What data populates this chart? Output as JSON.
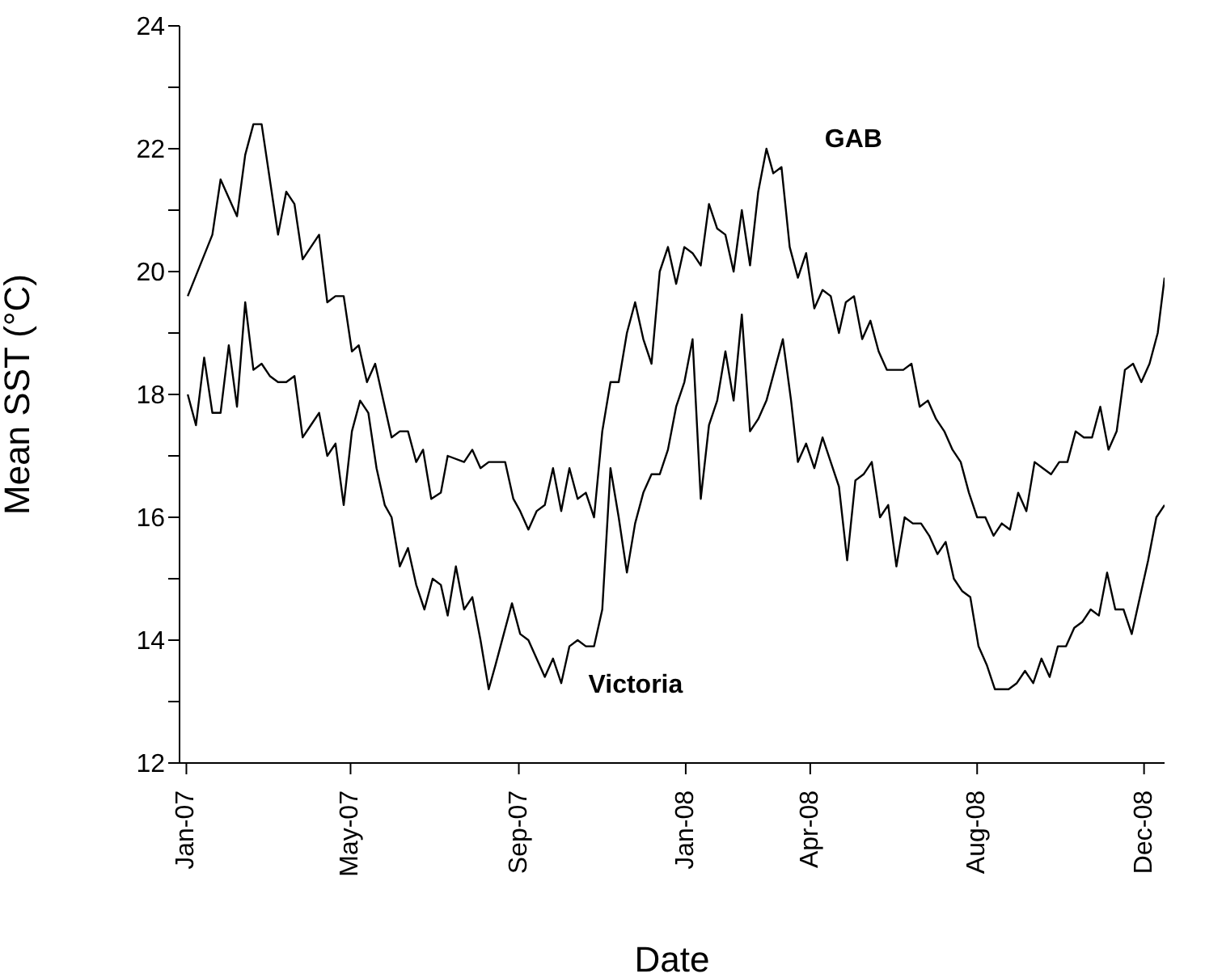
{
  "chart_data": {
    "type": "line",
    "xlabel": "Date",
    "ylabel": "Mean SST (°C)",
    "xlim": [
      "2006-12-27",
      "2008-12-16"
    ],
    "xticks": [
      {
        "value": "2007-01-01",
        "label": "Jan-07"
      },
      {
        "value": "2007-05-01",
        "label": "May-07"
      },
      {
        "value": "2007-09-01",
        "label": "Sep-07"
      },
      {
        "value": "2008-01-01",
        "label": "Jan-08"
      },
      {
        "value": "2008-04-01",
        "label": "Apr-08"
      },
      {
        "value": "2008-08-01",
        "label": "Aug-08"
      },
      {
        "value": "2008-12-01",
        "label": "Dec-08"
      }
    ],
    "ylim": [
      12,
      24
    ],
    "yticks": [
      12,
      {
        "value": 13,
        "label": null
      },
      14,
      {
        "value": 15,
        "label": null
      },
      16,
      {
        "value": 17,
        "label": null
      },
      18,
      {
        "value": 19,
        "label": null
      },
      20,
      {
        "value": 21,
        "label": null
      },
      22,
      {
        "value": 23,
        "label": null
      },
      24
    ],
    "grid": false,
    "legend": false,
    "marker": "none",
    "line_style": "solid",
    "series": [
      {
        "name": "GAB",
        "color": "#000000",
        "x": [
          "2007-01-02",
          "2007-01-20",
          "2007-01-26",
          "2007-02-07",
          "2007-02-13",
          "2007-02-19",
          "2007-02-25",
          "2007-03-09",
          "2007-03-15",
          "2007-03-21",
          "2007-03-27",
          "2007-04-08",
          "2007-04-14",
          "2007-04-20",
          "2007-04-26",
          "2007-05-02",
          "2007-05-07",
          "2007-05-13",
          "2007-05-19",
          "2007-05-31",
          "2007-06-06",
          "2007-06-12",
          "2007-06-18",
          "2007-06-23",
          "2007-06-29",
          "2007-07-06",
          "2007-07-11",
          "2007-07-23",
          "2007-07-29",
          "2007-08-04",
          "2007-08-10",
          "2007-08-16",
          "2007-08-22",
          "2007-08-28",
          "2007-09-02",
          "2007-09-08",
          "2007-09-14",
          "2007-09-20",
          "2007-09-26",
          "2007-10-02",
          "2007-10-08",
          "2007-10-14",
          "2007-10-20",
          "2007-10-26",
          "2007-11-01",
          "2007-11-07",
          "2007-11-13",
          "2007-11-19",
          "2007-11-25",
          "2007-12-01",
          "2007-12-07",
          "2007-12-13",
          "2007-12-19",
          "2007-12-25",
          "2007-12-31",
          "2008-01-06",
          "2008-01-12",
          "2008-01-18",
          "2008-01-24",
          "2008-01-30",
          "2008-02-05",
          "2008-02-11",
          "2008-02-17",
          "2008-02-23",
          "2008-02-29",
          "2008-03-05",
          "2008-03-11",
          "2008-03-17",
          "2008-03-23",
          "2008-03-29",
          "2008-04-04",
          "2008-04-10",
          "2008-04-16",
          "2008-04-22",
          "2008-04-27",
          "2008-05-03",
          "2008-05-09",
          "2008-05-15",
          "2008-05-21",
          "2008-05-27",
          "2008-06-08",
          "2008-06-14",
          "2008-06-20",
          "2008-06-26",
          "2008-07-02",
          "2008-07-08",
          "2008-07-14",
          "2008-07-20",
          "2008-07-26",
          "2008-08-01",
          "2008-08-07",
          "2008-08-13",
          "2008-08-19",
          "2008-08-25",
          "2008-08-31",
          "2008-09-06",
          "2008-09-12",
          "2008-09-18",
          "2008-09-24",
          "2008-09-30",
          "2008-10-06",
          "2008-10-12",
          "2008-10-18",
          "2008-10-24",
          "2008-10-30",
          "2008-11-05",
          "2008-11-11",
          "2008-11-17",
          "2008-11-23",
          "2008-11-29",
          "2008-12-05",
          "2008-12-11",
          "2008-12-16"
        ],
        "values": [
          19.6,
          20.6,
          21.5,
          20.9,
          21.9,
          22.4,
          22.4,
          20.6,
          21.3,
          21.1,
          20.2,
          20.6,
          19.5,
          19.6,
          19.6,
          18.7,
          18.8,
          18.2,
          18.5,
          17.3,
          17.4,
          17.4,
          16.9,
          17.1,
          16.3,
          16.4,
          17.0,
          16.9,
          17.1,
          16.8,
          16.9,
          16.9,
          16.9,
          16.3,
          16.1,
          15.8,
          16.1,
          16.2,
          16.8,
          16.1,
          16.8,
          16.3,
          16.4,
          16.0,
          17.4,
          18.2,
          18.2,
          19.0,
          19.5,
          18.9,
          18.5,
          20.0,
          20.4,
          19.8,
          20.4,
          20.3,
          20.1,
          21.1,
          20.7,
          20.6,
          20.0,
          21.0,
          20.1,
          21.3,
          22.0,
          21.6,
          21.7,
          20.4,
          19.9,
          20.3,
          19.4,
          19.7,
          19.6,
          19.0,
          19.5,
          19.6,
          18.9,
          19.2,
          18.7,
          18.4,
          18.4,
          18.5,
          17.8,
          17.9,
          17.6,
          17.4,
          17.1,
          16.9,
          16.4,
          16.0,
          16.0,
          15.7,
          15.9,
          15.8,
          16.4,
          16.1,
          16.9,
          16.8,
          16.7,
          16.9,
          16.9,
          17.4,
          17.3,
          17.3,
          17.8,
          17.1,
          17.4,
          18.4,
          18.5,
          18.2,
          18.5,
          19.0,
          19.9
        ]
      },
      {
        "name": "Victoria",
        "color": "#000000",
        "x": [
          "2007-01-02",
          "2007-01-08",
          "2007-01-14",
          "2007-01-20",
          "2007-01-26",
          "2007-02-01",
          "2007-02-07",
          "2007-02-13",
          "2007-02-19",
          "2007-02-25",
          "2007-03-03",
          "2007-03-09",
          "2007-03-15",
          "2007-03-21",
          "2007-03-27",
          "2007-04-02",
          "2007-04-08",
          "2007-04-14",
          "2007-04-20",
          "2007-04-26",
          "2007-05-02",
          "2007-05-08",
          "2007-05-14",
          "2007-05-20",
          "2007-05-26",
          "2007-05-31",
          "2007-06-06",
          "2007-06-12",
          "2007-06-18",
          "2007-06-24",
          "2007-06-30",
          "2007-07-06",
          "2007-07-11",
          "2007-07-17",
          "2007-07-23",
          "2007-07-29",
          "2007-08-04",
          "2007-08-10",
          "2007-08-15",
          "2007-08-21",
          "2007-08-27",
          "2007-09-02",
          "2007-09-08",
          "2007-09-14",
          "2007-09-20",
          "2007-09-26",
          "2007-10-02",
          "2007-10-08",
          "2007-10-14",
          "2007-10-20",
          "2007-10-26",
          "2007-11-01",
          "2007-11-07",
          "2007-11-13",
          "2007-11-19",
          "2007-11-25",
          "2007-12-01",
          "2007-12-07",
          "2007-12-13",
          "2007-12-19",
          "2007-12-25",
          "2007-12-31",
          "2008-01-06",
          "2008-01-12",
          "2008-01-18",
          "2008-01-24",
          "2008-01-30",
          "2008-02-05",
          "2008-02-11",
          "2008-02-17",
          "2008-02-23",
          "2008-02-29",
          "2008-03-06",
          "2008-03-12",
          "2008-03-18",
          "2008-03-23",
          "2008-03-29",
          "2008-04-04",
          "2008-04-10",
          "2008-04-16",
          "2008-04-22",
          "2008-04-28",
          "2008-05-04",
          "2008-05-10",
          "2008-05-16",
          "2008-05-22",
          "2008-05-28",
          "2008-06-03",
          "2008-06-09",
          "2008-06-15",
          "2008-06-21",
          "2008-06-27",
          "2008-07-03",
          "2008-07-09",
          "2008-07-15",
          "2008-07-21",
          "2008-07-27",
          "2008-08-02",
          "2008-08-08",
          "2008-08-14",
          "2008-08-24",
          "2008-08-30",
          "2008-09-05",
          "2008-09-11",
          "2008-09-17",
          "2008-09-23",
          "2008-09-29",
          "2008-10-05",
          "2008-10-11",
          "2008-10-17",
          "2008-10-23",
          "2008-10-29",
          "2008-11-04",
          "2008-11-10",
          "2008-11-16",
          "2008-11-22",
          "2008-11-28",
          "2008-12-04",
          "2008-12-10",
          "2008-12-16"
        ],
        "values": [
          18.0,
          17.5,
          18.6,
          17.7,
          17.7,
          18.8,
          17.8,
          19.5,
          18.4,
          18.5,
          18.3,
          18.2,
          18.2,
          18.3,
          17.3,
          17.5,
          17.7,
          17.0,
          17.2,
          16.2,
          17.4,
          17.9,
          17.7,
          16.8,
          16.2,
          16.0,
          15.2,
          15.5,
          14.9,
          14.5,
          15.0,
          14.9,
          14.4,
          15.2,
          14.5,
          14.7,
          14.0,
          13.2,
          13.6,
          14.1,
          14.6,
          14.1,
          14.0,
          13.7,
          13.4,
          13.7,
          13.3,
          13.9,
          14.0,
          13.9,
          13.9,
          14.5,
          16.8,
          16.0,
          15.1,
          15.9,
          16.4,
          16.7,
          16.7,
          17.1,
          17.8,
          18.2,
          18.9,
          16.3,
          17.5,
          17.9,
          18.7,
          17.9,
          19.3,
          17.4,
          17.6,
          17.9,
          18.4,
          18.9,
          17.9,
          16.9,
          17.2,
          16.8,
          17.3,
          16.9,
          16.5,
          15.3,
          16.6,
          16.7,
          16.9,
          16.0,
          16.2,
          15.2,
          16.0,
          15.9,
          15.9,
          15.7,
          15.4,
          15.6,
          15.0,
          14.8,
          14.7,
          13.9,
          13.6,
          13.2,
          13.2,
          13.3,
          13.5,
          13.3,
          13.7,
          13.4,
          13.9,
          13.9,
          14.2,
          14.3,
          14.5,
          14.4,
          15.1,
          14.5,
          14.5,
          14.1,
          14.7,
          15.3,
          16.0,
          16.2
        ]
      }
    ]
  }
}
